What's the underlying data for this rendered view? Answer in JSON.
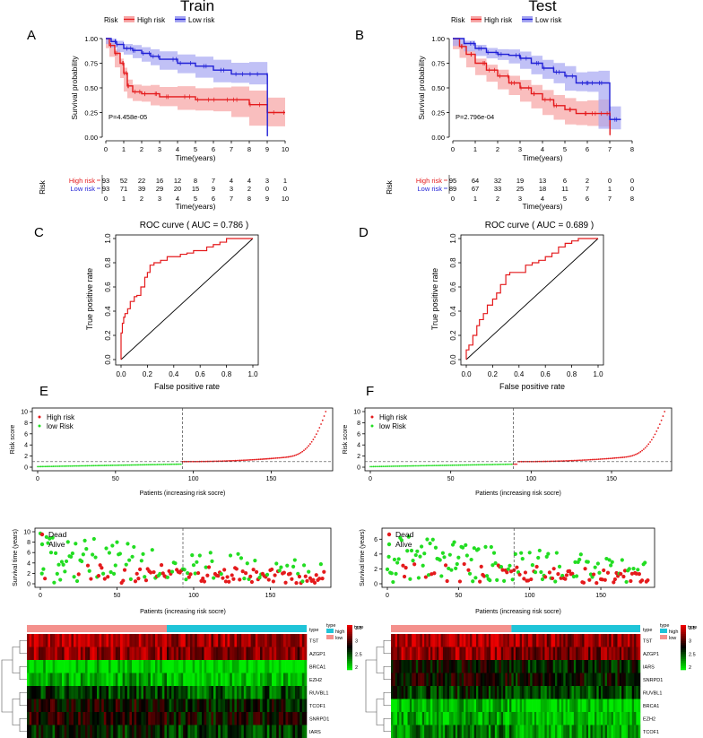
{
  "figure": {
    "titles": {
      "train": "Train",
      "test": "Test"
    },
    "panel_letters": [
      "A",
      "B",
      "C",
      "D",
      "E",
      "F"
    ],
    "colors": {
      "high": "#e41a1c",
      "low": "#1f1fd6",
      "high_band": "#f7a8a8",
      "low_band": "#a6a6f2",
      "dead": "#e41a1c",
      "alive": "#22dd22",
      "type_high": "#f4908c",
      "type_low": "#1fc4d8"
    }
  },
  "chart_data": [
    {
      "id": "A",
      "type": "line",
      "subtype": "kaplan-meier",
      "legend": {
        "title": "Risk",
        "entries": [
          "High risk",
          "Low risk"
        ]
      },
      "xlabel": "Time(years)",
      "ylabel": "Survival probability",
      "xlim": [
        0,
        10
      ],
      "ylim": [
        0,
        1
      ],
      "xticks": [
        "0",
        "1",
        "2",
        "3",
        "4",
        "5",
        "6",
        "7",
        "8",
        "9",
        "10"
      ],
      "yticks": [
        "0.00",
        "0.25",
        "0.50",
        "0.75",
        "1.00"
      ],
      "annotation": "P=4.458e-05",
      "series": [
        {
          "name": "High risk",
          "x": [
            0,
            0.2,
            0.5,
            0.8,
            1.0,
            1.2,
            1.5,
            2,
            2.5,
            3,
            4,
            5,
            6,
            7,
            8,
            9,
            10
          ],
          "y": [
            1,
            0.93,
            0.85,
            0.75,
            0.65,
            0.52,
            0.46,
            0.44,
            0.44,
            0.41,
            0.41,
            0.38,
            0.38,
            0.38,
            0.33,
            0.25,
            0.25
          ]
        },
        {
          "name": "Low risk",
          "x": [
            0,
            0.3,
            0.6,
            1,
            1.5,
            2,
            2.5,
            3,
            4,
            5,
            6,
            7,
            8,
            9,
            9.01
          ],
          "y": [
            1,
            0.97,
            0.94,
            0.9,
            0.88,
            0.85,
            0.82,
            0.79,
            0.75,
            0.72,
            0.68,
            0.64,
            0.64,
            0.63,
            0.01
          ]
        }
      ],
      "risk_table": {
        "title": "Risk",
        "xlabel": "Time(years)",
        "times": [
          "0",
          "1",
          "2",
          "3",
          "4",
          "5",
          "6",
          "7",
          "8",
          "9",
          "10"
        ],
        "rows": [
          {
            "name": "High risk",
            "values": [
              "93",
              "52",
              "22",
              "16",
              "12",
              "8",
              "7",
              "4",
              "4",
              "3",
              "1"
            ]
          },
          {
            "name": "Low risk",
            "values": [
              "93",
              "71",
              "39",
              "29",
              "20",
              "15",
              "9",
              "3",
              "2",
              "0",
              "0"
            ]
          }
        ]
      }
    },
    {
      "id": "B",
      "type": "line",
      "subtype": "kaplan-meier",
      "legend": {
        "title": "Risk",
        "entries": [
          "High risk",
          "Low risk"
        ]
      },
      "xlabel": "Time(years)",
      "ylabel": "Survival probability",
      "xlim": [
        0,
        8
      ],
      "ylim": [
        0,
        1
      ],
      "xticks": [
        "0",
        "1",
        "2",
        "3",
        "4",
        "5",
        "6",
        "7",
        "8"
      ],
      "yticks": [
        "0.00",
        "0.25",
        "0.50",
        "0.75",
        "1.00"
      ],
      "annotation": "P=2.796e-04",
      "series": [
        {
          "name": "High risk",
          "x": [
            0,
            0.3,
            0.6,
            1,
            1.5,
            2,
            2.5,
            3,
            3.5,
            4,
            4.5,
            5,
            5.5,
            6,
            6.5,
            7,
            7.01
          ],
          "y": [
            1,
            0.92,
            0.84,
            0.75,
            0.68,
            0.62,
            0.55,
            0.5,
            0.44,
            0.38,
            0.32,
            0.28,
            0.24,
            0.24,
            0.24,
            0.24,
            0.02
          ]
        },
        {
          "name": "Low risk",
          "x": [
            0,
            0.5,
            1,
            1.5,
            2,
            2.5,
            3,
            3.5,
            4,
            4.5,
            5,
            5.5,
            6,
            6.5,
            7,
            7.5
          ],
          "y": [
            1,
            0.95,
            0.9,
            0.86,
            0.84,
            0.83,
            0.8,
            0.75,
            0.7,
            0.66,
            0.62,
            0.55,
            0.55,
            0.55,
            0.18,
            0.18
          ]
        }
      ],
      "risk_table": {
        "title": "Risk",
        "xlabel": "Time(years)",
        "times": [
          "0",
          "1",
          "2",
          "3",
          "4",
          "5",
          "6",
          "7",
          "8"
        ],
        "rows": [
          {
            "name": "High risk",
            "values": [
              "95",
              "64",
              "32",
              "19",
              "13",
              "6",
              "2",
              "0",
              "0"
            ]
          },
          {
            "name": "Low risk",
            "values": [
              "89",
              "67",
              "33",
              "25",
              "18",
              "11",
              "7",
              "1",
              "0"
            ]
          }
        ]
      }
    },
    {
      "id": "C",
      "type": "line",
      "subtype": "roc",
      "title": "ROC curve ( AUC =  0.786 )",
      "xlabel": "False positive rate",
      "ylabel": "True positive rate",
      "xlim": [
        0,
        1
      ],
      "ylim": [
        0,
        1
      ],
      "xticks": [
        "0.0",
        "0.2",
        "0.4",
        "0.6",
        "0.8",
        "1.0"
      ],
      "yticks": [
        "0.0",
        "0.2",
        "0.4",
        "0.6",
        "0.8",
        "1.0"
      ],
      "x": [
        0,
        0.01,
        0.02,
        0.03,
        0.05,
        0.07,
        0.1,
        0.12,
        0.15,
        0.18,
        0.2,
        0.22,
        0.25,
        0.3,
        0.35,
        0.4,
        0.45,
        0.5,
        0.55,
        0.6,
        0.65,
        0.7,
        0.75,
        0.8,
        0.85,
        0.9,
        0.95,
        1
      ],
      "y": [
        0,
        0.22,
        0.3,
        0.35,
        0.38,
        0.42,
        0.48,
        0.52,
        0.53,
        0.6,
        0.68,
        0.72,
        0.78,
        0.8,
        0.82,
        0.85,
        0.85,
        0.87,
        0.88,
        0.9,
        0.9,
        0.93,
        0.95,
        0.97,
        1,
        1,
        1,
        1
      ]
    },
    {
      "id": "D",
      "type": "line",
      "subtype": "roc",
      "title": "ROC curve ( AUC =  0.689 )",
      "xlabel": "False positive rate",
      "ylabel": "True positive rate",
      "xlim": [
        0,
        1
      ],
      "ylim": [
        0,
        1
      ],
      "xticks": [
        "0.0",
        "0.2",
        "0.4",
        "0.6",
        "0.8",
        "1.0"
      ],
      "yticks": [
        "0.0",
        "0.2",
        "0.4",
        "0.6",
        "0.8",
        "1.0"
      ],
      "x": [
        0,
        0.02,
        0.05,
        0.08,
        0.1,
        0.13,
        0.16,
        0.2,
        0.23,
        0.26,
        0.3,
        0.33,
        0.36,
        0.4,
        0.45,
        0.5,
        0.55,
        0.6,
        0.65,
        0.7,
        0.75,
        0.8,
        0.85,
        0.9,
        0.95,
        1
      ],
      "y": [
        0,
        0.08,
        0.12,
        0.2,
        0.28,
        0.33,
        0.38,
        0.45,
        0.5,
        0.55,
        0.62,
        0.7,
        0.72,
        0.72,
        0.72,
        0.78,
        0.8,
        0.82,
        0.85,
        0.88,
        0.93,
        0.96,
        0.98,
        1,
        1,
        1
      ]
    },
    {
      "id": "E",
      "type": "scatter",
      "subtype": "risk-score",
      "legend": [
        "High risk",
        "low Risk"
      ],
      "xlabel": "Patients (increasing risk socre)",
      "ylabel": "Risk score",
      "xlim": [
        0,
        186
      ],
      "ylim": [
        0,
        10
      ],
      "cutoff": 93,
      "threshold": 1.0,
      "xticks": [
        "0",
        "50",
        "100",
        "150"
      ],
      "yticks": [
        "0",
        "2",
        "4",
        "6",
        "8",
        "10"
      ]
    },
    {
      "id": "F",
      "type": "scatter",
      "subtype": "risk-score",
      "legend": [
        "High risk",
        "low Risk"
      ],
      "xlabel": "Patients (increasing risk socre)",
      "ylabel": "Risk score",
      "xlim": [
        0,
        184
      ],
      "ylim": [
        0,
        10
      ],
      "cutoff": 89,
      "threshold": 1.0,
      "xticks": [
        "0",
        "50",
        "100",
        "150"
      ],
      "yticks": [
        "0",
        "2",
        "4",
        "6",
        "8",
        "10"
      ]
    },
    {
      "id": "E2",
      "type": "scatter",
      "subtype": "survival-status",
      "legend": [
        "Dead",
        "Alive"
      ],
      "xlabel": "Patients (increasing risk socre)",
      "ylabel": "Survival time (years)",
      "xlim": [
        0,
        186
      ],
      "ylim": [
        0,
        10
      ],
      "cutoff": 93,
      "xticks": [
        "0",
        "50",
        "100",
        "150"
      ],
      "yticks": [
        "0",
        "2",
        "4",
        "6",
        "8",
        "10"
      ]
    },
    {
      "id": "F2",
      "type": "scatter",
      "subtype": "survival-status",
      "legend": [
        "Dead",
        "Alive"
      ],
      "xlabel": "Patients (increasing risk socre)",
      "ylabel": "Survival time (years)",
      "xlim": [
        0,
        184
      ],
      "ylim": [
        0,
        7
      ],
      "cutoff": 89,
      "xticks": [
        "0",
        "50",
        "100",
        "150"
      ],
      "yticks": [
        "0",
        "2",
        "4",
        "6"
      ]
    },
    {
      "id": "E3",
      "type": "heatmap",
      "genes": [
        "TST",
        "AZGP1",
        "BRCA1",
        "EZH2",
        "RUVBL1",
        "TCOF1",
        "SNRPD1",
        "IARS"
      ],
      "gene_levels": [
        3.3,
        3.2,
        2.0,
        2.15,
        2.5,
        2.75,
        2.8,
        2.6
      ],
      "type_label": "type",
      "type_legend": [
        "high",
        "low"
      ],
      "split": 0.5,
      "scale": {
        "title": "type",
        "ticks": [
          "3.5",
          "3",
          "2.5",
          "2"
        ],
        "min": 2,
        "max": 3.5
      }
    },
    {
      "id": "F3",
      "type": "heatmap",
      "genes": [
        "TST",
        "AZGP1",
        "IARS",
        "SNRPD1",
        "RUVBL1",
        "BRCA1",
        "EZH2",
        "TCOF1"
      ],
      "gene_levels": [
        3.3,
        3.2,
        2.7,
        2.75,
        2.55,
        2.1,
        2.15,
        2.3
      ],
      "type_label": "type",
      "type_legend": [
        "high",
        "low"
      ],
      "split": 0.48,
      "scale": {
        "title": "type",
        "ticks": [
          "3.5",
          "3",
          "2.5",
          "2"
        ],
        "min": 2,
        "max": 3.5
      }
    }
  ]
}
